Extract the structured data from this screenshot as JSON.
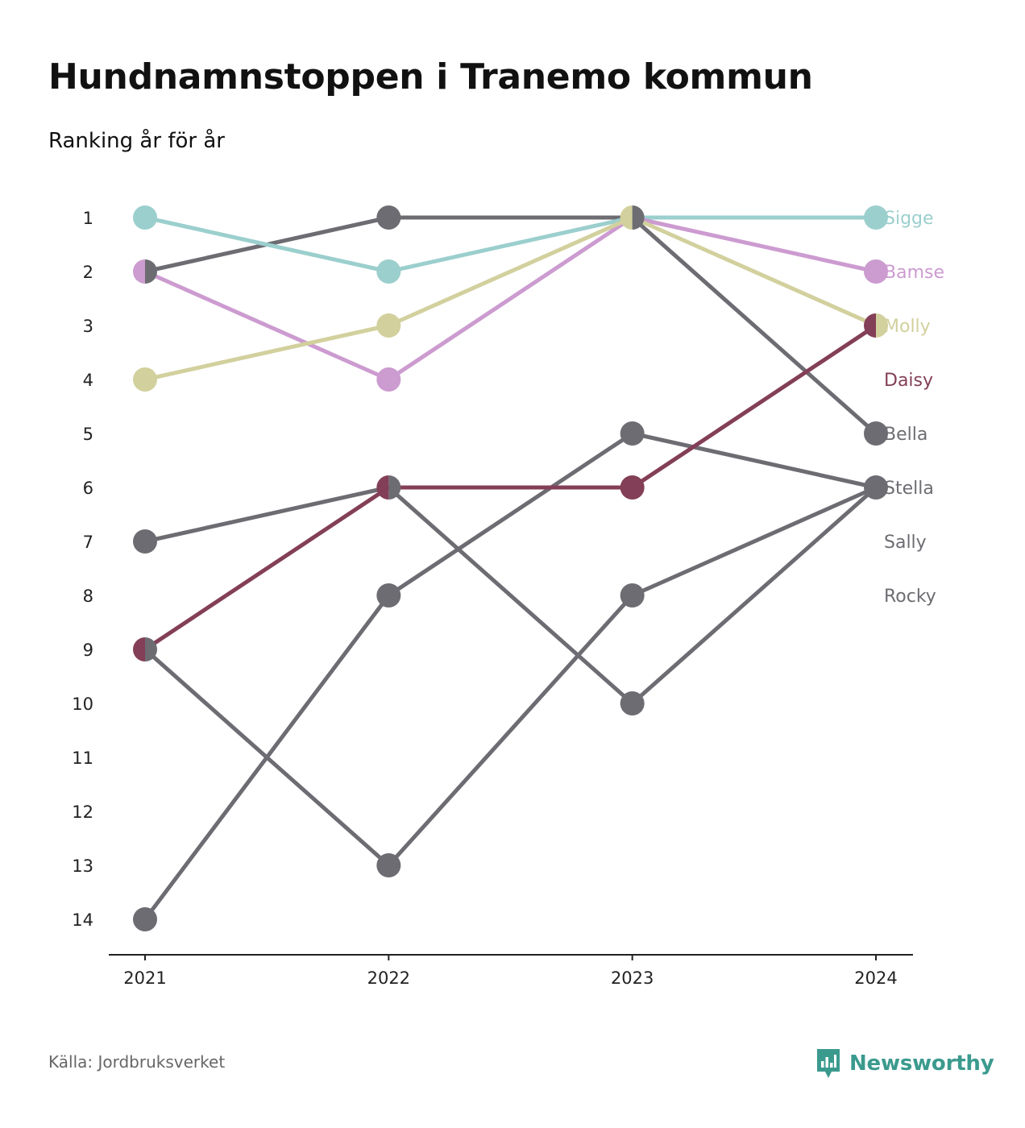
{
  "header": {
    "title": "Hundnamnstoppen i Tranemo kommun",
    "subtitle": "Ranking år för år"
  },
  "footer": {
    "source": "Källa: Jordbruksverket",
    "brand": "Newsworthy",
    "brand_icon": "newsworthy-logo-icon"
  },
  "colors": {
    "Sigge": "#9bcfcd",
    "Bamse": "#cc9bd0",
    "Molly": "#d2d09d",
    "Daisy": "#833f57",
    "other": "#6d6c72",
    "axis": "#222222",
    "brand": "#3b9a8e"
  },
  "chart_data": {
    "type": "line",
    "x": [
      "2021",
      "2022",
      "2023",
      "2024"
    ],
    "y_ticks": [
      "1",
      "2",
      "3",
      "4",
      "5",
      "6",
      "7",
      "8",
      "9",
      "10",
      "11",
      "12",
      "13",
      "14"
    ],
    "ylim": [
      1,
      14
    ],
    "y_inverted": true,
    "grid": false,
    "legend": "right end labels",
    "series": [
      {
        "name": "Sigge",
        "values": [
          1,
          2,
          1,
          1
        ],
        "color": "#9bcfcd"
      },
      {
        "name": "Bamse",
        "values": [
          2,
          4,
          1,
          2
        ],
        "color": "#cc9bd0"
      },
      {
        "name": "Molly",
        "values": [
          4,
          3,
          1,
          3
        ],
        "color": "#d2d09d"
      },
      {
        "name": "Daisy",
        "values": [
          9,
          6,
          6,
          3
        ],
        "color": "#833f57"
      },
      {
        "name": "Bella",
        "values": [
          2,
          1,
          1,
          5
        ],
        "color": "#6d6c72"
      },
      {
        "name": "Stella",
        "values": [
          14,
          8,
          5,
          6
        ],
        "color": "#6d6c72"
      },
      {
        "name": "Sally",
        "values": [
          7,
          6,
          10,
          6
        ],
        "color": "#6d6c72"
      },
      {
        "name": "Rocky",
        "values": [
          9,
          13,
          8,
          6
        ],
        "color": "#6d6c72"
      }
    ]
  }
}
